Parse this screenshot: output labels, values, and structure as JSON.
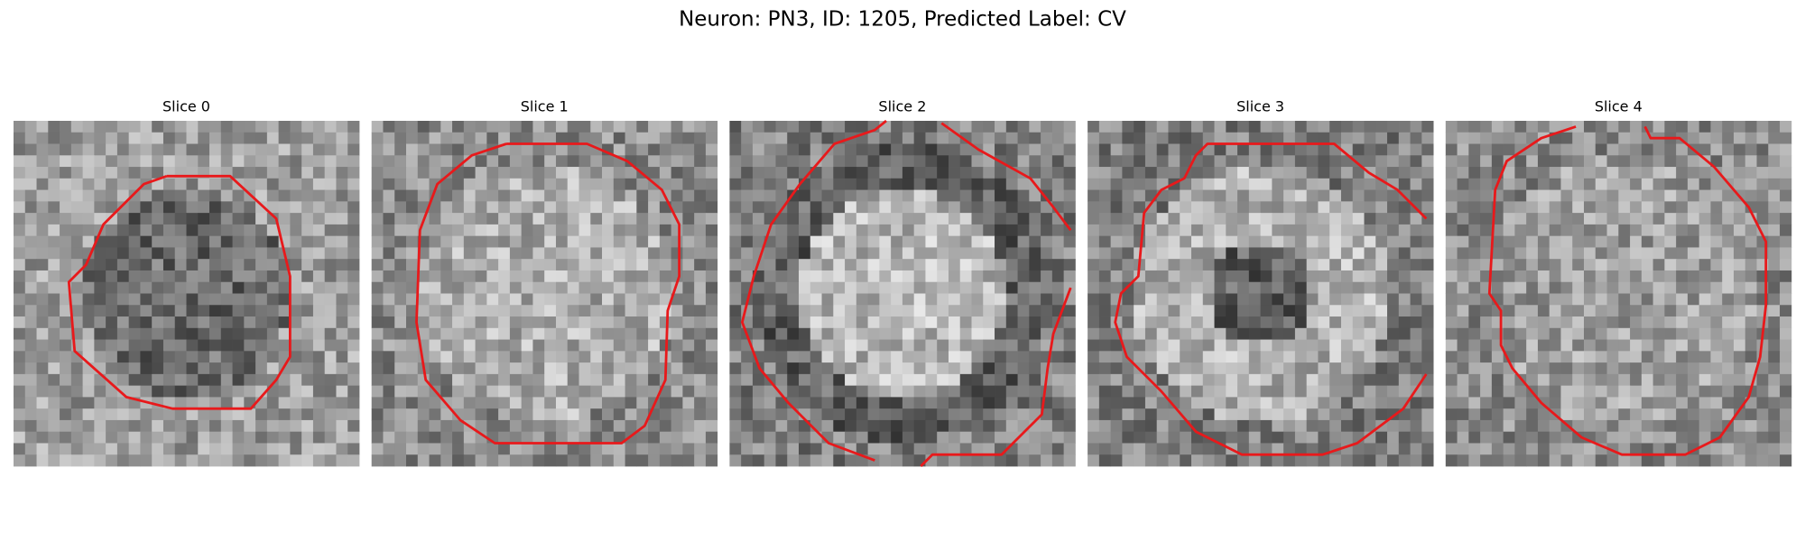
{
  "title": "Neuron: PN3, ID: 1205, Predicted Label: CV",
  "panels": [
    {
      "title": "Slice 0"
    },
    {
      "title": "Slice 1"
    },
    {
      "title": "Slice 2"
    },
    {
      "title": "Slice 3"
    },
    {
      "title": "Slice 4"
    }
  ]
}
